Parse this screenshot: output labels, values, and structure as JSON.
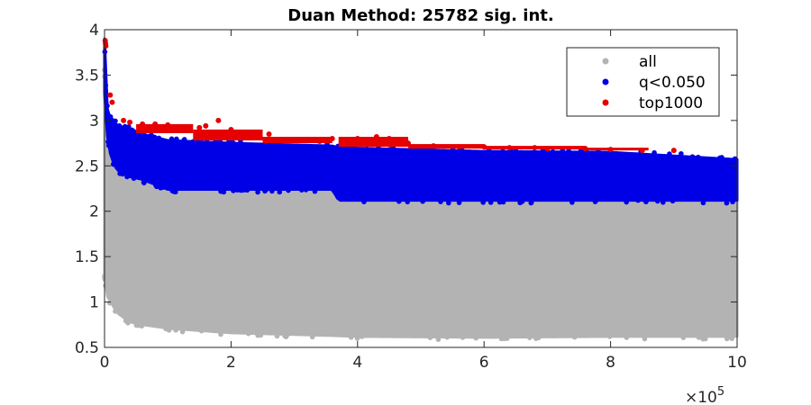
{
  "chart_data": {
    "type": "scatter",
    "title": "Duan Method: 25782 sig. int.",
    "xlabel": "",
    "ylabel": "",
    "xlim": [
      0,
      1000000
    ],
    "ylim": [
      0.5,
      4
    ],
    "x_ticks": [
      0,
      200000,
      400000,
      600000,
      800000,
      1000000
    ],
    "x_tick_labels": [
      "0",
      "2",
      "4",
      "6",
      "8",
      "10"
    ],
    "x_exponent_label": "×10",
    "x_exponent_power": "5",
    "y_ticks": [
      0.5,
      1,
      1.5,
      2,
      2.5,
      3,
      3.5,
      4
    ],
    "y_tick_labels": [
      "0.5",
      "1",
      "1.5",
      "2",
      "2.5",
      "3",
      "3.5",
      "4"
    ],
    "legend_position": "top-right",
    "grid": false,
    "series": [
      {
        "name": "all",
        "color": "#b3b3b3",
        "envelope": {
          "x": [
            0,
            2000,
            5000,
            10000,
            20000,
            40000,
            60000,
            100000,
            200000,
            360000,
            400000,
            600000,
            800000,
            1000000
          ],
          "lower": [
            1.3,
            1.15,
            1.05,
            1.0,
            0.88,
            0.78,
            0.75,
            0.71,
            0.66,
            0.63,
            0.62,
            0.61,
            0.62,
            0.62
          ],
          "upper": [
            3.55,
            3.1,
            2.85,
            2.6,
            2.45,
            2.38,
            2.35,
            2.3,
            2.26,
            2.22,
            2.2,
            2.18,
            2.16,
            2.12
          ]
        }
      },
      {
        "name": "q<0.050",
        "color": "#0000e6",
        "envelope": {
          "x": [
            0,
            2000,
            5000,
            10000,
            20000,
            40000,
            60000,
            100000,
            200000,
            360000,
            370000,
            600000,
            800000,
            1000000
          ],
          "lower": [
            3.3,
            3.0,
            2.8,
            2.6,
            2.45,
            2.38,
            2.35,
            2.24,
            2.24,
            2.24,
            2.12,
            2.12,
            2.12,
            2.12
          ],
          "upper": [
            3.9,
            3.3,
            3.1,
            3.0,
            2.95,
            2.9,
            2.85,
            2.78,
            2.75,
            2.72,
            2.7,
            2.66,
            2.65,
            2.57
          ]
        }
      },
      {
        "name": "top1000",
        "color": "#e60000",
        "points": [
          [
            1000,
            3.88
          ],
          [
            1500,
            3.85
          ],
          [
            2000,
            3.82
          ],
          [
            9000,
            3.28
          ],
          [
            12000,
            3.2
          ],
          [
            30000,
            3.0
          ],
          [
            40000,
            2.98
          ],
          [
            60000,
            2.96
          ],
          [
            80000,
            2.96
          ],
          [
            100000,
            2.95
          ],
          [
            110000,
            2.92
          ],
          [
            130000,
            2.9
          ],
          [
            150000,
            2.92
          ],
          [
            160000,
            2.94
          ],
          [
            180000,
            3.0
          ],
          [
            200000,
            2.9
          ],
          [
            240000,
            2.82
          ],
          [
            260000,
            2.85
          ],
          [
            300000,
            2.78
          ],
          [
            340000,
            2.77
          ],
          [
            360000,
            2.8
          ],
          [
            380000,
            2.78
          ],
          [
            400000,
            2.8
          ],
          [
            430000,
            2.82
          ],
          [
            450000,
            2.8
          ],
          [
            480000,
            2.75
          ],
          [
            520000,
            2.72
          ],
          [
            560000,
            2.71
          ],
          [
            600000,
            2.71
          ],
          [
            640000,
            2.7
          ],
          [
            680000,
            2.7
          ],
          [
            700000,
            2.69
          ],
          [
            760000,
            2.69
          ],
          [
            800000,
            2.68
          ],
          [
            850000,
            2.67
          ],
          [
            900000,
            2.67
          ]
        ],
        "bands": [
          {
            "x0": 50000,
            "x1": 140000,
            "lower": 2.86,
            "upper": 2.96
          },
          {
            "x0": 140000,
            "x1": 250000,
            "lower": 2.78,
            "upper": 2.9
          },
          {
            "x0": 250000,
            "x1": 360000,
            "lower": 2.75,
            "upper": 2.82
          },
          {
            "x0": 370000,
            "x1": 480000,
            "lower": 2.71,
            "upper": 2.82
          },
          {
            "x0": 480000,
            "x1": 600000,
            "lower": 2.69,
            "upper": 2.74
          },
          {
            "x0": 600000,
            "x1": 760000,
            "lower": 2.68,
            "upper": 2.72
          },
          {
            "x0": 760000,
            "x1": 860000,
            "lower": 2.67,
            "upper": 2.7
          }
        ]
      }
    ]
  }
}
